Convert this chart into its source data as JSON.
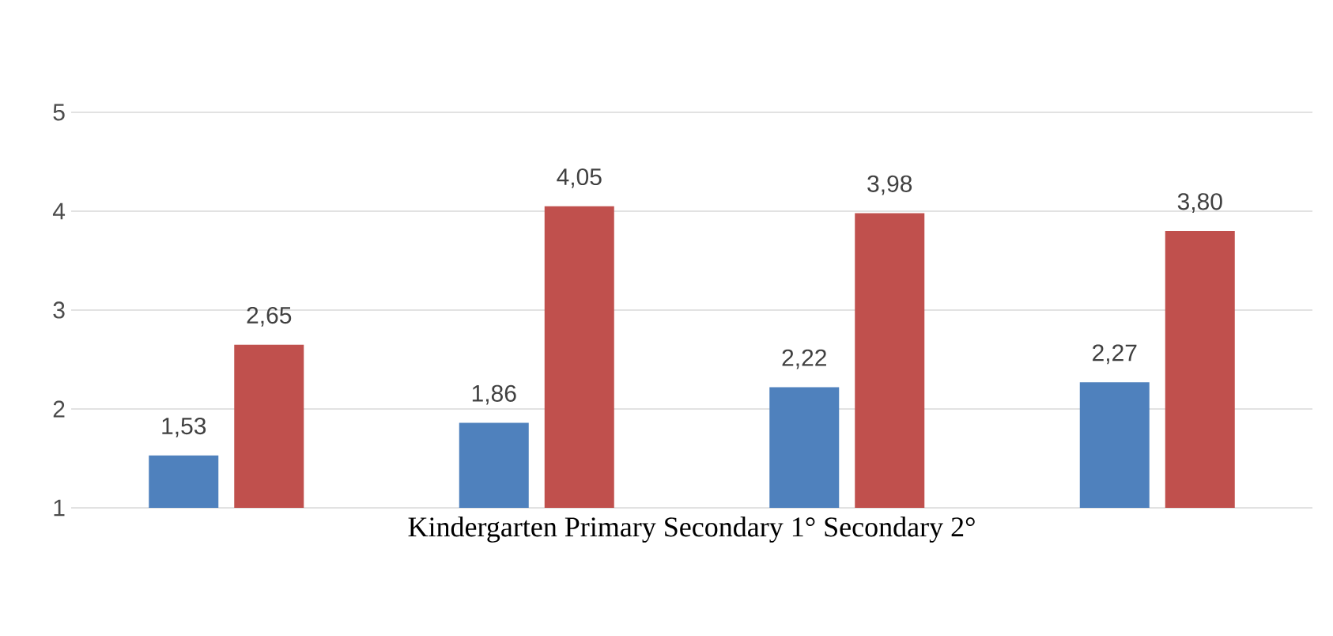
{
  "chart_data": {
    "type": "bar",
    "xlabel": "Kindergarten Primary Secondary 1° Secondary 2°",
    "categories": [
      null,
      null,
      null,
      null
    ],
    "series": [
      {
        "color": "#4f81bd",
        "values": [
          1.53,
          1.86,
          2.22,
          2.27
        ],
        "value_labels": [
          "1,53",
          "1,86",
          "2,22",
          "2,27"
        ]
      },
      {
        "color": "#c0504d",
        "values": [
          2.65,
          4.05,
          3.98,
          3.8
        ],
        "value_labels": [
          "2,65",
          "4,05",
          "3,98",
          "3,80"
        ]
      }
    ],
    "ylim": [
      1,
      5
    ],
    "yticks": [
      1,
      2,
      3,
      4,
      5
    ],
    "grid": "y",
    "legend": false
  }
}
